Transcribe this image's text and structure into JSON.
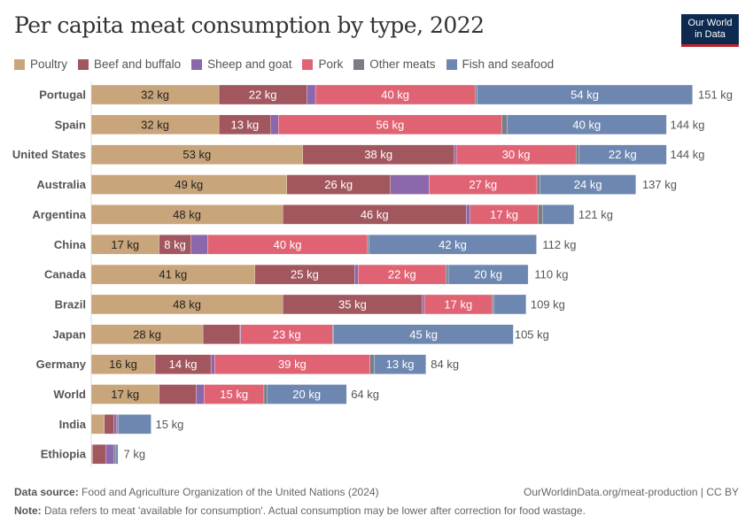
{
  "title": "Per capita meat consumption by type, 2022",
  "logo": {
    "line1": "Our World",
    "line2": "in Data"
  },
  "footer": {
    "source_label": "Data source:",
    "source": "Food and Agriculture Organization of the United Nations (2024)",
    "url": "OurWorldinData.org/meat-production | CC BY",
    "note_label": "Note:",
    "note": "Data refers to meat 'available for consumption'. Actual consumption may be lower after correction for food wastage."
  },
  "chart_data": {
    "type": "bar",
    "orientation": "horizontal",
    "stacked": true,
    "unit": "kg",
    "legend_position": "top",
    "grid": false,
    "xlim": [
      0,
      151
    ],
    "categories": [
      "Portugal",
      "Spain",
      "United States",
      "Australia",
      "Argentina",
      "China",
      "Canada",
      "Brazil",
      "Japan",
      "Germany",
      "World",
      "India",
      "Ethiopia"
    ],
    "totals": [
      151,
      144,
      144,
      137,
      121,
      112,
      110,
      109,
      105,
      84,
      64,
      15,
      7
    ],
    "series": [
      {
        "name": "Poultry",
        "color": "#c9a57b",
        "values": [
          32,
          32,
          53,
          49,
          48,
          17,
          41,
          48,
          28,
          16,
          17,
          3.3,
          0.3
        ]
      },
      {
        "name": "Beef and buffalo",
        "color": "#a2575e",
        "values": [
          22,
          13,
          38,
          26,
          46,
          8,
          25,
          35,
          9.3,
          14,
          9.3,
          2.4,
          3.3
        ]
      },
      {
        "name": "Sheep and goat",
        "color": "#8c67ab",
        "values": [
          2.2,
          1.9,
          0.5,
          9.7,
          1,
          4.2,
          0.9,
          0.5,
          0.2,
          0.9,
          2,
          0.7,
          2
        ]
      },
      {
        "name": "Pork",
        "color": "#e06374",
        "values": [
          40,
          56,
          30,
          27,
          17,
          40,
          22,
          17,
          23,
          39,
          15,
          0.3,
          0
        ]
      },
      {
        "name": "Other meats",
        "color": "#7a7d86",
        "values": [
          0.5,
          1.3,
          0.7,
          0.8,
          1.2,
          0.4,
          0.6,
          0.4,
          0.3,
          1,
          0.7,
          0,
          0.6
        ]
      },
      {
        "name": "Fish and seafood",
        "color": "#6d87b0",
        "values": [
          54,
          40,
          22,
          24,
          7.8,
          42,
          20,
          8.1,
          45,
          13,
          20,
          8.3,
          0.5
        ]
      }
    ]
  }
}
